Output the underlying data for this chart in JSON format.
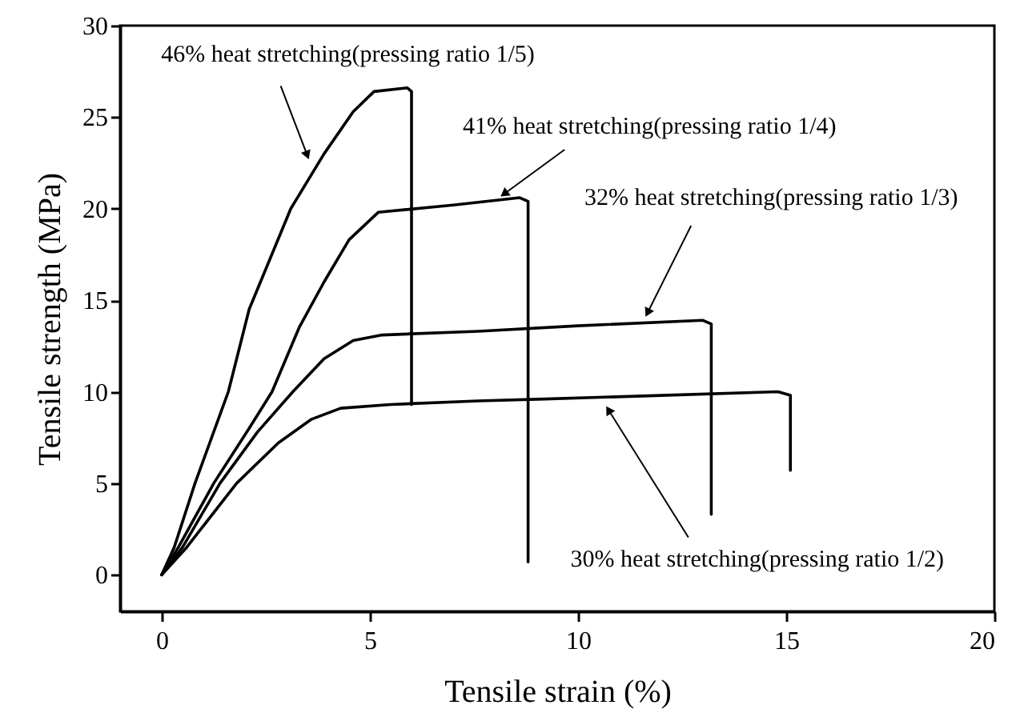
{
  "chart_data": {
    "type": "line",
    "xlabel": "Tensile strain (%)",
    "ylabel": "Tensile strength (MPa)",
    "xlim": [
      -1,
      20
    ],
    "xticks": [
      0,
      5,
      10,
      15,
      20
    ],
    "ylim": [
      -2,
      30
    ],
    "yticks": [
      0,
      5,
      10,
      15,
      20,
      25,
      30
    ],
    "grid": false,
    "marker": "none",
    "line_style": "solid",
    "series": [
      {
        "color": "#000000",
        "x": [
          0,
          0.3,
          0.8,
          1.6,
          2.1,
          3.1,
          3.9,
          4.6,
          5.1,
          5.9,
          6,
          6
        ],
        "values": [
          0,
          1.5,
          5,
          10,
          14.5,
          20,
          23,
          25.3,
          26.4,
          26.6,
          26.4,
          9.3
        ]
      },
      {
        "color": "#000000",
        "x": [
          0,
          0.4,
          1.25,
          2.1,
          2.65,
          3.3,
          3.9,
          4.5,
          5.2,
          7,
          8.6,
          8.8,
          8.8
        ],
        "values": [
          0,
          1.5,
          5,
          8,
          10,
          13.5,
          16,
          18.3,
          19.8,
          20.2,
          20.6,
          20.4,
          0.7
        ]
      },
      {
        "color": "#000000",
        "x": [
          0,
          0.5,
          1.4,
          2.3,
          3.15,
          3.9,
          4.6,
          5.3,
          7.6,
          10,
          13,
          13.2,
          13.2
        ],
        "values": [
          0,
          1.5,
          5,
          7.8,
          10,
          11.8,
          12.8,
          13.1,
          13.3,
          13.6,
          13.9,
          13.7,
          3.3
        ]
      },
      {
        "color": "#000000",
        "x": [
          0,
          0.6,
          1.8,
          2.8,
          3.6,
          4.3,
          5.5,
          7.6,
          9.2,
          12,
          14.8,
          15.1,
          15.1
        ],
        "values": [
          0,
          1.5,
          5,
          7.2,
          8.5,
          9.1,
          9.3,
          9.5,
          9.6,
          9.8,
          10,
          9.8,
          5.7
        ]
      }
    ],
    "annotations": [
      {
        "text": "46% heat stretching(pressing ratio 1/5)",
        "x": 3.55,
        "y": 22.6
      },
      {
        "text": "41% heat stretching(pressing ratio 1/4)",
        "x": 8.1,
        "y": 20.6
      },
      {
        "text": "32% heat stretching(pressing ratio 1/3)",
        "x": 11.6,
        "y": 14.0
      },
      {
        "text": "30% heat stretching(pressing ratio 1/2)",
        "x": 10.65,
        "y": 9.3
      }
    ]
  }
}
